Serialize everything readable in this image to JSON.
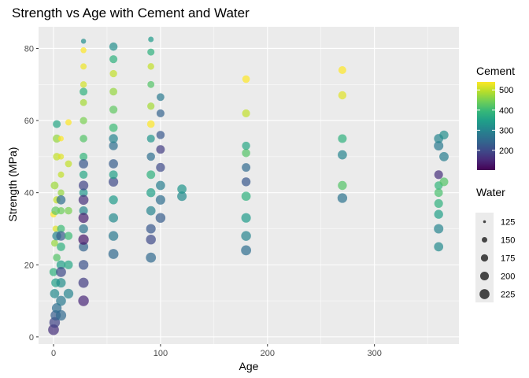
{
  "chart_data": {
    "type": "scatter",
    "title": "Strength vs Age with Cement and Water",
    "xlabel": "Age",
    "ylabel": "Strength (MPa)",
    "xlim": [
      -14,
      379
    ],
    "ylim": [
      -2,
      86
    ],
    "x_ticks": [
      0,
      100,
      200,
      300
    ],
    "y_ticks": [
      0,
      20,
      40,
      60,
      80
    ],
    "grid": true,
    "colors": {
      "panel": "#ebebeb",
      "grid_major": "#ffffff",
      "tick": "#333333"
    },
    "point_alpha": 0.7,
    "color_legend": {
      "title": "Cement",
      "ticks": [
        200,
        300,
        400,
        500
      ],
      "range": [
        102,
        540
      ],
      "palette": [
        "#440154",
        "#482878",
        "#3e4a89",
        "#31688e",
        "#26828e",
        "#1f9e89",
        "#35b779",
        "#6ece58",
        "#b5de2b",
        "#fde725"
      ]
    },
    "size_legend": {
      "title": "Water",
      "values": [
        125,
        150,
        175,
        200,
        225
      ],
      "range": [
        122,
        247
      ]
    },
    "legend_position": "right",
    "series": [
      {
        "points": [
          [
            0,
            2,
            160,
            245
          ],
          [
            1,
            4,
            190,
            240
          ],
          [
            2,
            6,
            230,
            230
          ],
          [
            3,
            8,
            260,
            220
          ],
          [
            1,
            12,
            310,
            210
          ],
          [
            2,
            15,
            350,
            200
          ],
          [
            0,
            18,
            380,
            190
          ],
          [
            3,
            22,
            420,
            180
          ],
          [
            1,
            26,
            470,
            170
          ],
          [
            2,
            30,
            520,
            160
          ],
          [
            0,
            34,
            540,
            162
          ],
          [
            3,
            38,
            500,
            175
          ],
          [
            1,
            42,
            475,
            185
          ],
          [
            2,
            35,
            430,
            195
          ],
          [
            3,
            28,
            300,
            205
          ],
          [
            3,
            50,
            500,
            180
          ],
          [
            3,
            55,
            470,
            190
          ],
          [
            3,
            59,
            360,
            185
          ],
          [
            7,
            6,
            250,
            235
          ],
          [
            7,
            10,
            280,
            225
          ],
          [
            7,
            15,
            320,
            215
          ],
          [
            7,
            20,
            350,
            205
          ],
          [
            7,
            25,
            380,
            195
          ],
          [
            7,
            30,
            400,
            185
          ],
          [
            7,
            35,
            440,
            175
          ],
          [
            7,
            40,
            470,
            165
          ],
          [
            7,
            45,
            500,
            160
          ],
          [
            7,
            50,
            520,
            155
          ],
          [
            7,
            55,
            540,
            150
          ],
          [
            7,
            18,
            200,
            228
          ],
          [
            7,
            28,
            230,
            218
          ],
          [
            7,
            38,
            260,
            208
          ],
          [
            14,
            12,
            300,
            220
          ],
          [
            14,
            20,
            360,
            200
          ],
          [
            14,
            28,
            400,
            190
          ],
          [
            14,
            35,
            450,
            180
          ],
          [
            14,
            48,
            500,
            170
          ],
          [
            14,
            59.5,
            540,
            160
          ],
          [
            28,
            10,
            150,
            240
          ],
          [
            28,
            15,
            180,
            230
          ],
          [
            28,
            20,
            210,
            222
          ],
          [
            28,
            25,
            240,
            215
          ],
          [
            28,
            30,
            270,
            208
          ],
          [
            28,
            35,
            300,
            200
          ],
          [
            28,
            40,
            330,
            195
          ],
          [
            28,
            45,
            360,
            190
          ],
          [
            28,
            50,
            390,
            185
          ],
          [
            28,
            55,
            420,
            180
          ],
          [
            28,
            60,
            450,
            175
          ],
          [
            28,
            65,
            480,
            170
          ],
          [
            28,
            70,
            510,
            165
          ],
          [
            28,
            75,
            530,
            160
          ],
          [
            28,
            79.5,
            540,
            155
          ],
          [
            28,
            82,
            320,
            145
          ],
          [
            28,
            27,
            130,
            235
          ],
          [
            28,
            33,
            140,
            230
          ],
          [
            28,
            38,
            160,
            225
          ],
          [
            28,
            42,
            190,
            218
          ],
          [
            28,
            48,
            220,
            212
          ],
          [
            28,
            68,
            380,
            185
          ],
          [
            56,
            23,
            250,
            228
          ],
          [
            56,
            28,
            280,
            220
          ],
          [
            56,
            33,
            310,
            212
          ],
          [
            56,
            38,
            340,
            205
          ],
          [
            56,
            43,
            200,
            218
          ],
          [
            56,
            48,
            230,
            210
          ],
          [
            56,
            53,
            260,
            202
          ],
          [
            56,
            58,
            400,
            195
          ],
          [
            56,
            63,
            430,
            188
          ],
          [
            56,
            68,
            470,
            182
          ],
          [
            56,
            73,
            500,
            176
          ],
          [
            56,
            77,
            380,
            186
          ],
          [
            56,
            80.5,
            320,
            192
          ],
          [
            56,
            45,
            350,
            198
          ],
          [
            56,
            55,
            300,
            206
          ],
          [
            91,
            22,
            250,
            228
          ],
          [
            91,
            27,
            200,
            222
          ],
          [
            91,
            30,
            220,
            216
          ],
          [
            91,
            35,
            300,
            210
          ],
          [
            91,
            40,
            350,
            204
          ],
          [
            91,
            45,
            380,
            198
          ],
          [
            91,
            50,
            260,
            192
          ],
          [
            91,
            55,
            330,
            186
          ],
          [
            91,
            59,
            540,
            180
          ],
          [
            91,
            64,
            480,
            175
          ],
          [
            91,
            70,
            420,
            170
          ],
          [
            91,
            75,
            500,
            165
          ],
          [
            91,
            79,
            380,
            172
          ],
          [
            91,
            82.5,
            340,
            150
          ],
          [
            100,
            33,
            230,
            222
          ],
          [
            100,
            38,
            260,
            216
          ],
          [
            100,
            42,
            290,
            210
          ],
          [
            100,
            47,
            200,
            204
          ],
          [
            100,
            52,
            180,
            198
          ],
          [
            100,
            56,
            220,
            192
          ],
          [
            100,
            62,
            240,
            186
          ],
          [
            100,
            66.5,
            280,
            182
          ],
          [
            120,
            39,
            310,
            215
          ],
          [
            120,
            41,
            330,
            210
          ],
          [
            180,
            24,
            260,
            228
          ],
          [
            180,
            28,
            300,
            222
          ],
          [
            180,
            33,
            340,
            216
          ],
          [
            180,
            39,
            380,
            210
          ],
          [
            180,
            43,
            220,
            204
          ],
          [
            180,
            47,
            250,
            198
          ],
          [
            180,
            51,
            420,
            192
          ],
          [
            180,
            53,
            360,
            190
          ],
          [
            180,
            62,
            500,
            186
          ],
          [
            180,
            71.5,
            540,
            180
          ],
          [
            270,
            38.5,
            270,
            220
          ],
          [
            270,
            42,
            420,
            205
          ],
          [
            270,
            50.5,
            300,
            210
          ],
          [
            270,
            55,
            380,
            200
          ],
          [
            270,
            67,
            520,
            190
          ],
          [
            270,
            74,
            540,
            185
          ],
          [
            360,
            25,
            310,
            210
          ],
          [
            360,
            30,
            300,
            215
          ],
          [
            360,
            34,
            350,
            205
          ],
          [
            360,
            37,
            380,
            200
          ],
          [
            360,
            40,
            410,
            195
          ],
          [
            360,
            42,
            390,
            192
          ],
          [
            360,
            45,
            160,
            200
          ],
          [
            360,
            53,
            280,
            215
          ],
          [
            360,
            55,
            300,
            210
          ],
          [
            365,
            56,
            320,
            205
          ],
          [
            365,
            43,
            420,
            198
          ],
          [
            365,
            50,
            290,
            212
          ]
        ]
      }
    ]
  }
}
